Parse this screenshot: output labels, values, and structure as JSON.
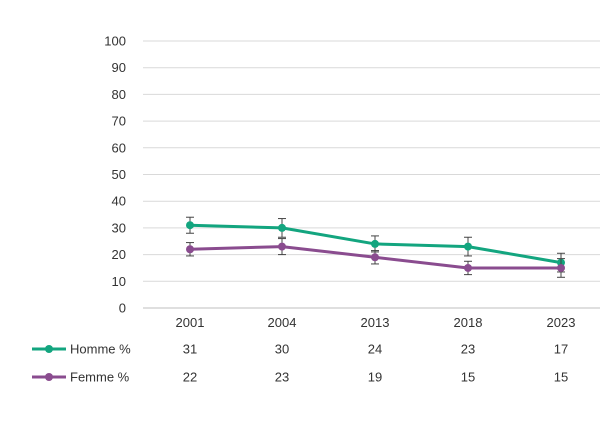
{
  "chart_data": {
    "type": "line",
    "categories": [
      "2001",
      "2004",
      "2013",
      "2018",
      "2023"
    ],
    "ylim": [
      0,
      100
    ],
    "y_ticks": [
      0,
      10,
      20,
      30,
      40,
      50,
      60,
      70,
      80,
      90,
      100
    ],
    "grid": true,
    "error_bars": true,
    "legend_placement": "bottom-left, as data table rows",
    "series": [
      {
        "name": "Homme %",
        "color": "#13a57f",
        "values": [
          31,
          30,
          24,
          23,
          17
        ],
        "error": [
          3,
          3.5,
          3,
          3.5,
          3.5
        ]
      },
      {
        "name": "Femme %",
        "color": "#8a4c8f",
        "values": [
          22,
          23,
          19,
          15,
          15
        ],
        "error": [
          2.5,
          3,
          2.5,
          2.5,
          3.5
        ]
      }
    ],
    "table": {
      "rows": [
        {
          "label": "Homme %",
          "values": [
            "31",
            "30",
            "24",
            "23",
            "17"
          ]
        },
        {
          "label": "Femme %",
          "values": [
            "22",
            "23",
            "19",
            "15",
            "15"
          ]
        }
      ]
    }
  }
}
